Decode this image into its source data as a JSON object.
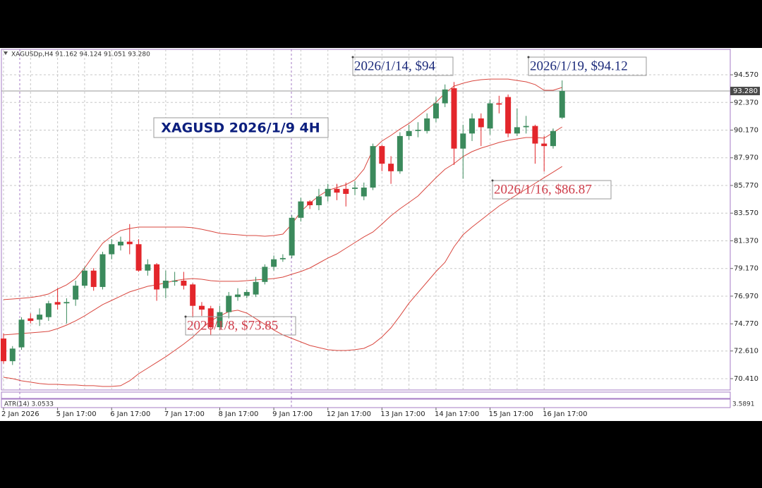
{
  "chart_data": {
    "type": "candlestick",
    "header": "XAGUSDp,H4 91.162 94.124 91.051 93.280",
    "title": "XAGUSD 2026/1/9 4H",
    "categories": [
      "2 Jan 2026",
      null,
      null,
      null,
      null,
      null,
      "5 Jan 17:00",
      null,
      null,
      null,
      null,
      null,
      "6 Jan 17:00",
      null,
      null,
      null,
      null,
      null,
      "7 Jan 17:00",
      null,
      null,
      null,
      null,
      null,
      "8 Jan 17:00",
      null,
      null,
      null,
      null,
      null,
      "9 Jan 17:00",
      null,
      null,
      null,
      null,
      null,
      "12 Jan 17:00",
      null,
      null,
      null,
      null,
      null,
      "13 Jan 17:00",
      null,
      null,
      null,
      null,
      null,
      "14 Jan 17:00",
      null,
      null,
      null,
      null,
      null,
      "15 Jan 17:00",
      null,
      null,
      null,
      null,
      null,
      "16 Jan 17:00",
      null,
      null
    ],
    "open": [
      73.6,
      71.8,
      72.9,
      75.2,
      75.1,
      75.3,
      76.5,
      76.4,
      76.7,
      77.8,
      79.0,
      77.7,
      80.3,
      81.0,
      81.3,
      81.1,
      79.0,
      79.5,
      77.6,
      78.2,
      78.2,
      77.9,
      76.2,
      76.0,
      74.5,
      75.7,
      76.9,
      77.0,
      77.1,
      78.1,
      79.3,
      79.9,
      80.2,
      83.2,
      84.5,
      84.2,
      84.9,
      85.5,
      85.5,
      85.5,
      84.9,
      85.6,
      88.9,
      87.5,
      86.9,
      89.7,
      90.1,
      90.1,
      91.1,
      92.3,
      93.5,
      88.7,
      89.9,
      91.1,
      90.3,
      92.3,
      92.8,
      89.9,
      90.4,
      90.5,
      89.1,
      88.9,
      91.16
    ],
    "high": [
      74.0,
      73.0,
      75.3,
      75.6,
      76.0,
      76.6,
      77.6,
      76.8,
      78.2,
      79.3,
      79.2,
      80.5,
      81.5,
      81.7,
      82.7,
      81.5,
      79.9,
      79.6,
      79.0,
      78.9,
      78.9,
      78.0,
      76.5,
      76.2,
      76.2,
      77.3,
      77.6,
      77.5,
      78.5,
      79.5,
      80.2,
      80.3,
      83.4,
      84.8,
      84.6,
      85.5,
      85.9,
      85.9,
      86.0,
      86.1,
      86.0,
      89.1,
      89.0,
      88.1,
      90.0,
      90.6,
      90.8,
      91.5,
      92.8,
      93.8,
      94.0,
      90.6,
      91.5,
      91.5,
      92.6,
      92.9,
      93.0,
      91.9,
      91.3,
      90.6,
      89.7,
      90.3,
      94.12
    ],
    "low": [
      71.6,
      71.5,
      72.7,
      74.8,
      74.6,
      75.0,
      75.9,
      74.8,
      76.2,
      77.6,
      77.4,
      77.5,
      79.9,
      80.6,
      80.3,
      78.9,
      78.6,
      76.6,
      76.8,
      77.8,
      77.5,
      75.3,
      75.4,
      73.85,
      74.3,
      75.2,
      76.6,
      76.8,
      76.9,
      77.9,
      79.0,
      79.7,
      80.0,
      82.9,
      83.9,
      83.8,
      84.5,
      84.6,
      84.1,
      85.0,
      84.6,
      85.4,
      86.9,
      85.9,
      86.7,
      89.4,
      89.6,
      89.9,
      90.8,
      92.0,
      87.4,
      86.3,
      89.3,
      88.9,
      89.8,
      91.5,
      89.6,
      89.7,
      89.9,
      87.5,
      86.87,
      88.7,
      91.05
    ],
    "close": [
      71.8,
      72.8,
      75.1,
      75.0,
      75.5,
      76.4,
      76.3,
      76.5,
      77.8,
      79.0,
      77.7,
      80.3,
      81.1,
      81.3,
      81.1,
      79.0,
      79.5,
      77.5,
      78.2,
      78.2,
      77.8,
      76.2,
      75.9,
      74.5,
      75.7,
      77.0,
      77.1,
      77.3,
      78.1,
      79.3,
      79.9,
      80.0,
      83.2,
      84.5,
      84.2,
      84.9,
      85.5,
      85.2,
      85.1,
      85.6,
      85.6,
      88.9,
      87.5,
      86.9,
      89.7,
      90.1,
      90.2,
      91.1,
      92.3,
      93.4,
      88.7,
      89.9,
      91.1,
      90.4,
      92.3,
      92.2,
      89.9,
      90.4,
      90.5,
      89.1,
      88.9,
      90.1,
      93.28
    ],
    "up_color": "#3b8a5c",
    "down_color": "#e3262b",
    "series": [
      {
        "color": "#d9473f",
        "values": [
          76.69,
          76.74,
          76.8,
          76.86,
          76.97,
          77.14,
          77.53,
          77.87,
          78.37,
          79.21,
          80.22,
          81.17,
          81.73,
          82.18,
          82.35,
          82.46,
          82.46,
          82.46,
          82.46,
          82.46,
          82.46,
          82.41,
          82.29,
          82.13,
          81.96,
          81.9,
          81.85,
          81.79,
          81.79,
          81.73,
          81.79,
          81.9,
          82.69,
          83.7,
          84.37,
          84.93,
          85.38,
          85.6,
          85.83,
          86.22,
          87.06,
          88.63,
          89.3,
          89.75,
          90.25,
          90.7,
          91.26,
          91.82,
          92.38,
          93.11,
          93.67,
          93.9,
          94.07,
          94.18,
          94.23,
          94.23,
          94.23,
          94.12,
          94.01,
          93.79,
          93.34,
          93.34,
          93.56
        ]
      },
      {
        "color": "#d9473f",
        "values": [
          73.89,
          73.94,
          74.0,
          74.05,
          74.11,
          74.17,
          74.39,
          74.67,
          75.01,
          75.4,
          75.85,
          76.3,
          76.63,
          76.97,
          77.31,
          77.53,
          77.75,
          77.87,
          78.03,
          78.2,
          78.31,
          78.37,
          78.31,
          78.2,
          78.15,
          78.15,
          78.15,
          78.2,
          78.26,
          78.31,
          78.37,
          78.48,
          78.71,
          78.93,
          79.21,
          79.6,
          80.0,
          80.33,
          80.78,
          81.23,
          81.68,
          82.07,
          82.69,
          83.36,
          83.92,
          84.42,
          84.93,
          85.66,
          86.39,
          87.06,
          87.51,
          88.07,
          88.46,
          88.74,
          88.96,
          89.19,
          89.36,
          89.47,
          89.58,
          89.58,
          89.53,
          89.97,
          90.42
        ]
      },
      {
        "color": "#d9473f",
        "values": [
          70.52,
          70.41,
          70.24,
          70.13,
          70.02,
          69.96,
          69.96,
          69.91,
          69.91,
          69.85,
          69.85,
          69.79,
          69.79,
          69.85,
          70.24,
          70.8,
          71.25,
          71.7,
          72.15,
          72.65,
          73.16,
          73.72,
          74.39,
          75.01,
          75.4,
          75.74,
          75.85,
          75.62,
          75.18,
          74.73,
          74.28,
          73.89,
          73.61,
          73.33,
          73.05,
          72.88,
          72.71,
          72.65,
          72.65,
          72.71,
          72.82,
          73.16,
          73.72,
          74.45,
          75.4,
          76.41,
          77.25,
          78.09,
          78.93,
          79.66,
          80.89,
          81.85,
          82.46,
          83.02,
          83.58,
          84.14,
          84.59,
          85.04,
          85.49,
          85.94,
          86.39,
          86.83,
          87.28
        ]
      }
    ],
    "ylim": [
      69.51,
      96.59
    ],
    "yticks": [
      {
        "value": 70.41,
        "label": "70.410"
      },
      {
        "value": 72.61,
        "label": "72.610"
      },
      {
        "value": 74.77,
        "label": "74.770"
      },
      {
        "value": 76.97,
        "label": "76.970"
      },
      {
        "value": 79.17,
        "label": "79.170"
      },
      {
        "value": 81.37,
        "label": "81.370"
      },
      {
        "value": 83.57,
        "label": "83.570"
      },
      {
        "value": 85.77,
        "label": "85.770"
      },
      {
        "value": 87.97,
        "label": "87.970"
      },
      {
        "value": 90.17,
        "label": "90.170"
      },
      {
        "value": 92.37,
        "label": "92.370"
      },
      {
        "value": 94.57,
        "label": "94.570"
      }
    ],
    "last_price": {
      "value": 93.28,
      "label": "93.280"
    },
    "grid": true,
    "annotations": [
      {
        "text": "2026/1/14, $94",
        "color": "#1b2a7a"
      },
      {
        "text": "2026/1/19, $94.12",
        "color": "#1b2a7a"
      },
      {
        "text": "2026/1/16, $86.87",
        "color": "#cf3d4a"
      },
      {
        "text": "2026/1/8, $73.85",
        "color": "#cf3d4a"
      }
    ],
    "subwindow": "ATR(14) 3.0533",
    "subwindow_scale": "3.5891"
  }
}
